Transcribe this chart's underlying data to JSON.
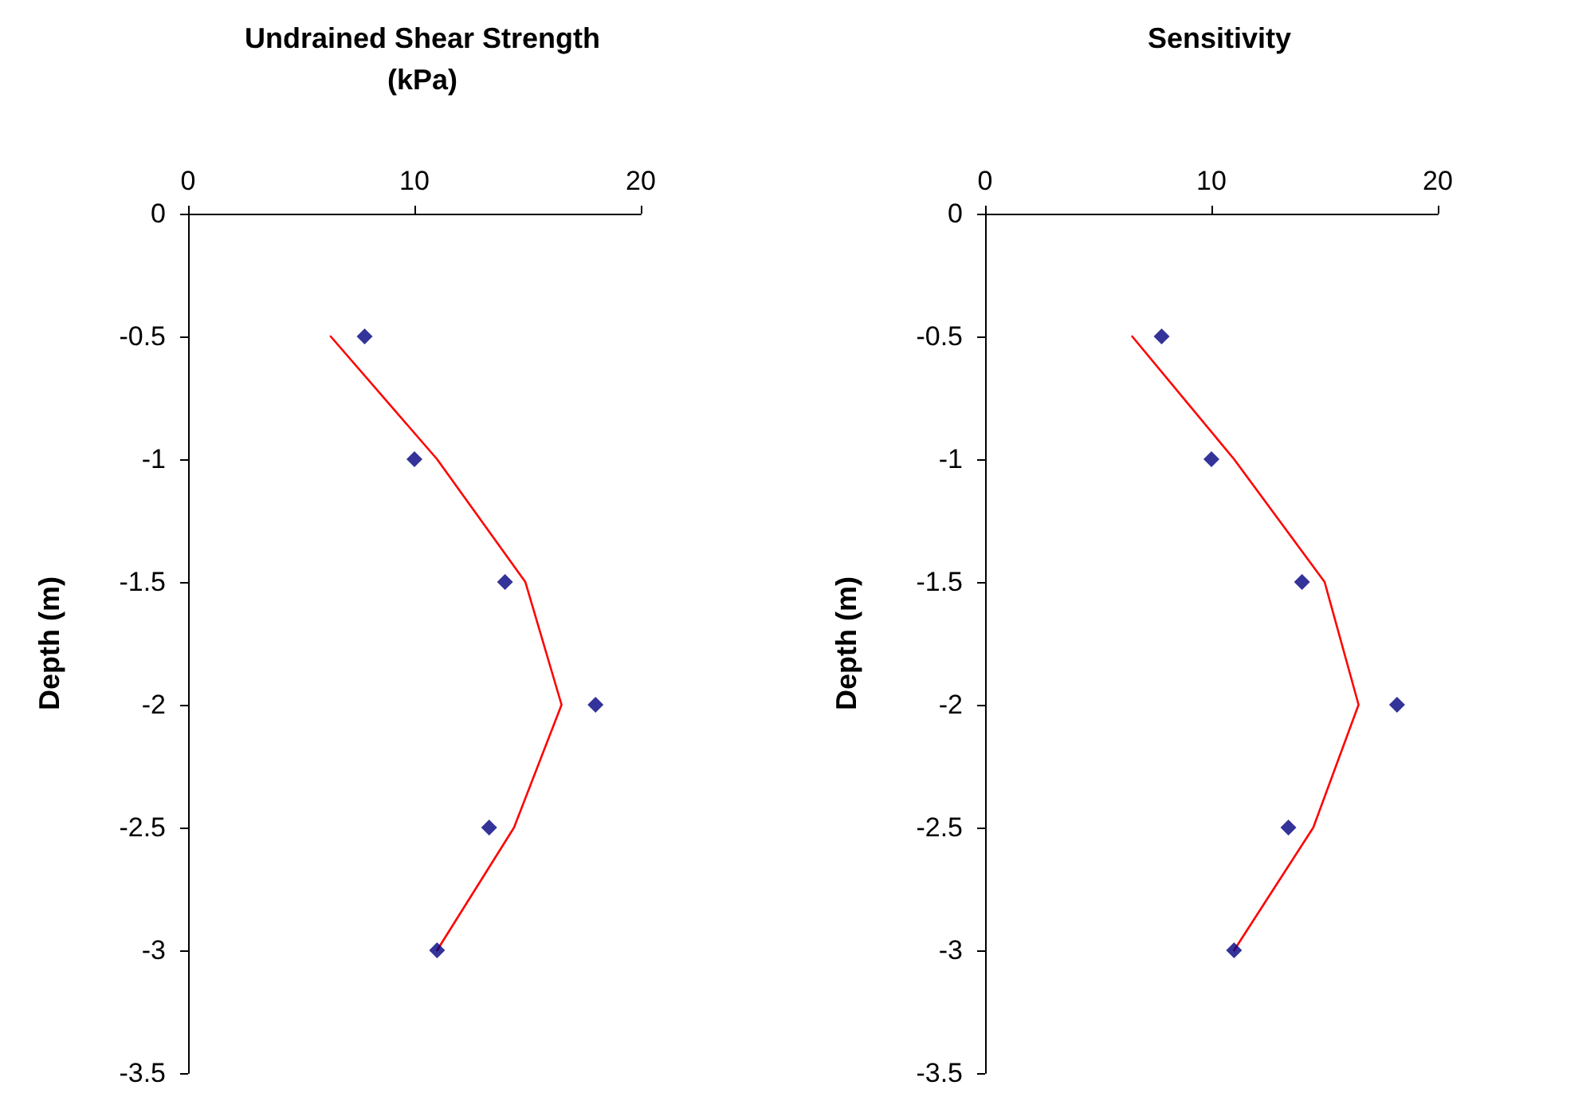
{
  "chart_data": [
    {
      "type": "scatter",
      "title": "Undrained Shear Strength\n(kPa)",
      "ylabel": "Depth (m)",
      "xlim": [
        0,
        20
      ],
      "xticks": [
        0,
        10,
        20
      ],
      "ylim": [
        -3.5,
        0
      ],
      "yticks": [
        -3.5,
        -3,
        -2.5,
        -2,
        -1.5,
        -1,
        -0.5,
        0
      ],
      "grid": false,
      "series": [
        {
          "marker": "diamond",
          "color": "#000080",
          "x": [
            7.8,
            10,
            14,
            18,
            13.3,
            11
          ],
          "values": [
            -0.5,
            -1,
            -1.5,
            -2,
            -2.5,
            -3
          ]
        },
        {
          "type": "line",
          "marker": "none",
          "line_style": "solid",
          "color": "#ff0000",
          "x": [
            6.3,
            11,
            14.9,
            16.5,
            14.4,
            11
          ],
          "values": [
            -0.5,
            -1,
            -1.5,
            -2,
            -2.5,
            -3
          ]
        }
      ]
    },
    {
      "type": "scatter",
      "title": "Sensitivity",
      "ylabel": "Depth (m)",
      "xlim": [
        0,
        20
      ],
      "xticks": [
        0,
        10,
        20
      ],
      "ylim": [
        -3.5,
        0
      ],
      "yticks": [
        -3.5,
        -3,
        -2.5,
        -2,
        -1.5,
        -1,
        -0.5,
        0
      ],
      "grid": false,
      "series": [
        {
          "marker": "diamond",
          "color": "#000080",
          "x": [
            7.8,
            10,
            14,
            18.2,
            13.4,
            11
          ],
          "values": [
            -0.5,
            -1,
            -1.5,
            -2,
            -2.5,
            -3
          ]
        },
        {
          "type": "line",
          "marker": "none",
          "line_style": "solid",
          "color": "#ff0000",
          "x": [
            6.5,
            11,
            15,
            16.5,
            14.5,
            11
          ],
          "values": [
            -0.5,
            -1,
            -1.5,
            -2,
            -2.5,
            -3
          ]
        }
      ]
    }
  ]
}
